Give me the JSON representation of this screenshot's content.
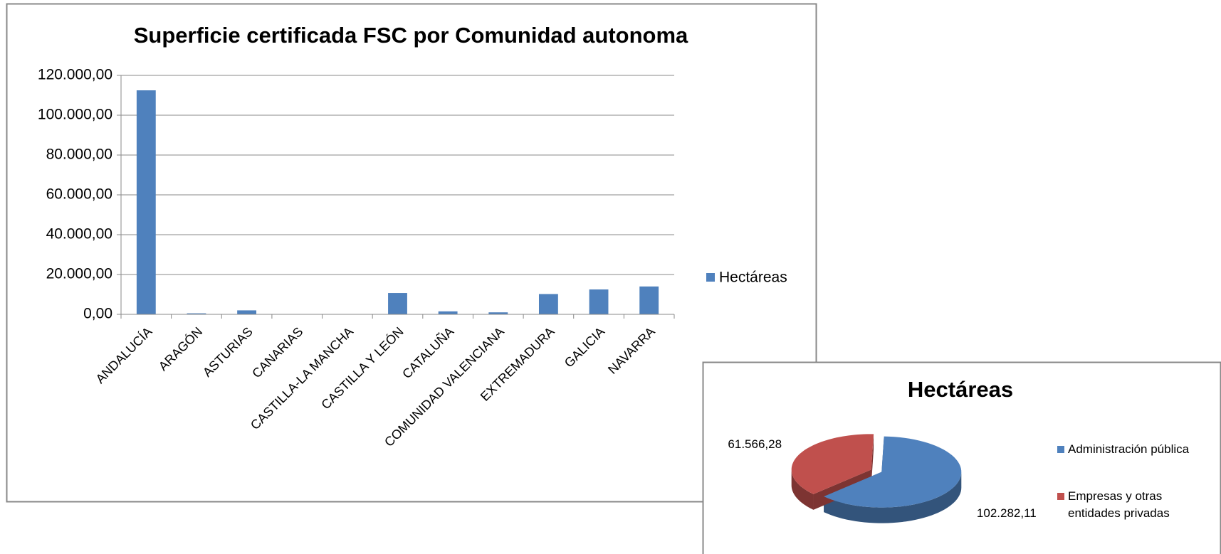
{
  "chart_data": [
    {
      "type": "bar",
      "title": "Superficie certificada FSC por Comunidad autonoma",
      "categories": [
        "ANDALUCÍA",
        "ARAGÓN",
        "ASTURIAS",
        "CANARIAS",
        "CASTILLA-LA MANCHA",
        "CASTILLA Y LEÓN",
        "CATALUÑA",
        "COMUNIDAD VALENCIANA",
        "EXTREMADURA",
        "GALICIA",
        "NAVARRA"
      ],
      "series": [
        {
          "name": "Hectáreas",
          "color": "#4f81bd",
          "values": [
            112500,
            500,
            2000,
            0,
            0,
            10700,
            1500,
            1000,
            10200,
            12500,
            14000
          ]
        }
      ],
      "ylim": [
        0,
        120000
      ],
      "yticks": [
        {
          "value": 0,
          "label": "0,00"
        },
        {
          "value": 20000,
          "label": "20.000,00"
        },
        {
          "value": 40000,
          "label": "40.000,00"
        },
        {
          "value": 60000,
          "label": "60.000,00"
        },
        {
          "value": 80000,
          "label": "80.000,00"
        },
        {
          "value": 100000,
          "label": "100.000,00"
        },
        {
          "value": 120000,
          "label": "120.000,00"
        }
      ],
      "grid": true,
      "legend": "right"
    },
    {
      "type": "pie",
      "title": "Hectáreas",
      "categories": [
        "Administración pública",
        "Empresas y otras entidades privadas"
      ],
      "values": [
        102282.11,
        61566.28
      ],
      "value_labels": [
        "102.282,11",
        "61.566,28"
      ],
      "colors": [
        "#4f81bd",
        "#c0504d"
      ],
      "legend": "right"
    }
  ]
}
